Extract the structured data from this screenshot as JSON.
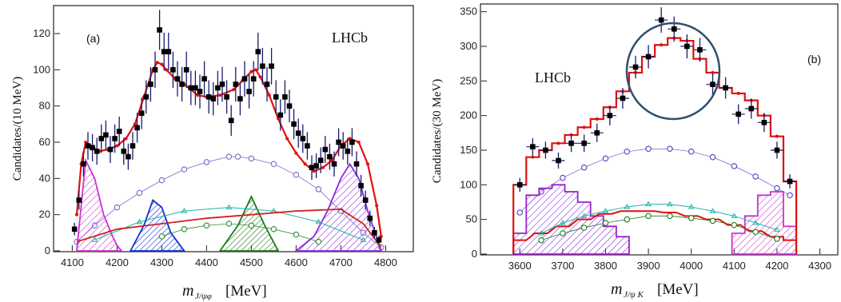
{
  "chart_data": [
    {
      "type": "line",
      "panel_label": "(a)",
      "experiment_label": "LHCb",
      "ylabel": "Candidates/(10 MeV)",
      "xlabel_main": "m",
      "xlabel_sub": "J/ψφ",
      "xlabel_unit": "[MeV]",
      "xlim": [
        4060,
        4860
      ],
      "ylim": [
        0,
        135
      ],
      "xticks": [
        4100,
        4200,
        4300,
        4400,
        4500,
        4600,
        4700,
        4800
      ],
      "yticks": [
        0,
        20,
        40,
        60,
        80,
        100,
        120
      ],
      "data_points": {
        "x": [
          4105,
          4115,
          4125,
          4135,
          4145,
          4155,
          4165,
          4175,
          4185,
          4195,
          4205,
          4215,
          4225,
          4235,
          4245,
          4255,
          4265,
          4275,
          4285,
          4295,
          4305,
          4315,
          4325,
          4335,
          4345,
          4355,
          4365,
          4375,
          4385,
          4395,
          4405,
          4415,
          4425,
          4435,
          4445,
          4455,
          4465,
          4475,
          4485,
          4495,
          4505,
          4515,
          4525,
          4535,
          4545,
          4555,
          4565,
          4575,
          4585,
          4595,
          4605,
          4615,
          4625,
          4635,
          4645,
          4655,
          4665,
          4675,
          4685,
          4695,
          4705,
          4715,
          4725,
          4735,
          4745,
          4755,
          4765,
          4775,
          4785
        ],
        "y": [
          12,
          28,
          48,
          58,
          57,
          55,
          62,
          64,
          56,
          62,
          66,
          55,
          52,
          58,
          68,
          76,
          85,
          92,
          100,
          122,
          110,
          110,
          100,
          95,
          92,
          100,
          90,
          90,
          88,
          95,
          85,
          84,
          90,
          92,
          85,
          72,
          92,
          84,
          95,
          88,
          95,
          110,
          102,
          92,
          102,
          85,
          75,
          85,
          80,
          70,
          65,
          62,
          58,
          46,
          47,
          50,
          56,
          52,
          48,
          60,
          58,
          55,
          60,
          48,
          36,
          28,
          18,
          10,
          6
        ]
      },
      "total_fit": {
        "x": [
          4110,
          4120,
          4130,
          4140,
          4160,
          4180,
          4200,
          4220,
          4240,
          4260,
          4280,
          4290,
          4300,
          4310,
          4330,
          4350,
          4380,
          4400,
          4430,
          4460,
          4480,
          4500,
          4510,
          4520,
          4540,
          4560,
          4580,
          4600,
          4620,
          4640,
          4660,
          4680,
          4700,
          4720,
          4740,
          4760,
          4780,
          4790
        ],
        "y": [
          20,
          48,
          60,
          58,
          55,
          56,
          58,
          62,
          70,
          85,
          100,
          104,
          103,
          100,
          95,
          92,
          86,
          85,
          86,
          89,
          94,
          99,
          100,
          96,
          86,
          73,
          62,
          54,
          48,
          44,
          46,
          50,
          58,
          62,
          60,
          48,
          25,
          8
        ]
      },
      "series": [
        {
          "name": "open-circle-nonresonant",
          "x": [
            4110,
            4150,
            4200,
            4250,
            4300,
            4350,
            4400,
            4450,
            4470,
            4500,
            4550,
            4600,
            4650,
            4700,
            4750,
            4790
          ],
          "y": [
            5,
            14,
            24,
            32,
            39,
            45,
            49,
            52,
            52,
            51,
            48,
            42,
            34,
            22,
            10,
            2
          ]
        },
        {
          "name": "magenta-hatched",
          "x": [
            4110,
            4130,
            4150,
            4170,
            4190,
            4200,
            4210
          ],
          "y": [
            0,
            50,
            40,
            20,
            8,
            3,
            0
          ]
        },
        {
          "name": "violet-hatched",
          "x": [
            4600,
            4640,
            4670,
            4700,
            4720,
            4740,
            4760,
            4790
          ],
          "y": [
            0,
            8,
            22,
            40,
            48,
            40,
            22,
            0
          ]
        },
        {
          "name": "blue-hatched",
          "x": [
            4230,
            4260,
            4280,
            4300,
            4320,
            4350
          ],
          "y": [
            0,
            14,
            28,
            24,
            10,
            0
          ]
        },
        {
          "name": "green-hatched",
          "x": [
            4430,
            4470,
            4500,
            4530,
            4560
          ],
          "y": [
            0,
            14,
            30,
            14,
            0
          ]
        },
        {
          "name": "cyan-triangles",
          "x": [
            4150,
            4250,
            4350,
            4450,
            4550,
            4650,
            4750
          ],
          "y": [
            6,
            16,
            22,
            24,
            22,
            16,
            6
          ]
        },
        {
          "name": "red-smooth",
          "x": [
            4110,
            4200,
            4300,
            4400,
            4500,
            4600,
            4700,
            4750,
            4790
          ],
          "y": [
            5,
            12,
            15,
            18,
            20,
            22,
            23,
            15,
            2
          ]
        },
        {
          "name": "dark-green-circles",
          "x": [
            4300,
            4350,
            4400,
            4450,
            4500,
            4550,
            4600,
            4650
          ],
          "y": [
            8,
            12,
            14,
            15,
            14,
            12,
            9,
            5
          ]
        }
      ]
    },
    {
      "type": "line",
      "panel_label": "(b)",
      "experiment_label": "LHCb",
      "ylabel": "Candidates/(30 MeV)",
      "xlabel_main": "m",
      "xlabel_sub": "J/ψ K",
      "xlabel_unit": "[MeV]",
      "xlim": [
        3510,
        4340
      ],
      "ylim": [
        0,
        360
      ],
      "xticks": [
        3600,
        3700,
        3800,
        3900,
        4000,
        4100,
        4200,
        4300
      ],
      "yticks": [
        0,
        50,
        100,
        150,
        200,
        250,
        300,
        350
      ],
      "data_points": {
        "x": [
          3600,
          3630,
          3660,
          3690,
          3720,
          3750,
          3780,
          3810,
          3840,
          3870,
          3900,
          3930,
          3960,
          3990,
          4020,
          4050,
          4080,
          4110,
          4140,
          4170,
          4200,
          4230
        ],
        "y": [
          100,
          155,
          150,
          135,
          160,
          160,
          175,
          200,
          225,
          270,
          285,
          338,
          325,
          300,
          295,
          245,
          240,
          202,
          210,
          190,
          150,
          105
        ]
      },
      "total_fit": {
        "x": [
          3600,
          3630,
          3660,
          3690,
          3720,
          3750,
          3780,
          3810,
          3840,
          3870,
          3900,
          3930,
          3960,
          3990,
          4020,
          4050,
          4080,
          4110,
          4140,
          4170,
          4200,
          4230
        ],
        "y": [
          100,
          140,
          150,
          160,
          172,
          183,
          195,
          212,
          235,
          262,
          285,
          302,
          312,
          308,
          282,
          262,
          240,
          232,
          222,
          200,
          170,
          105
        ]
      },
      "series": [
        {
          "name": "open-circle-nonresonant",
          "x": [
            3600,
            3650,
            3700,
            3750,
            3800,
            3850,
            3900,
            3950,
            4000,
            4050,
            4100,
            4150,
            4200,
            4230
          ],
          "y": [
            60,
            90,
            110,
            125,
            138,
            148,
            152,
            152,
            148,
            140,
            127,
            112,
            95,
            85
          ]
        },
        {
          "name": "magenta-hatched",
          "x": [
            3600,
            3630,
            3660,
            3690,
            3720,
            3750,
            3780,
            3810,
            3840
          ],
          "y": [
            30,
            85,
            95,
            100,
            90,
            75,
            55,
            40,
            25
          ]
        },
        {
          "name": "magenta-hatched-right",
          "x": [
            4110,
            4140,
            4170,
            4200,
            4230
          ],
          "y": [
            30,
            55,
            85,
            90,
            40
          ]
        },
        {
          "name": "red-hist",
          "x": [
            3600,
            3650,
            3700,
            3750,
            3800,
            3850,
            3900,
            3950,
            4000,
            4050,
            4100,
            4150,
            4200,
            4230
          ],
          "y": [
            20,
            30,
            40,
            50,
            58,
            62,
            62,
            60,
            55,
            50,
            42,
            33,
            25,
            20
          ]
        },
        {
          "name": "cyan-triangles",
          "x": [
            3650,
            3700,
            3750,
            3800,
            3850,
            3900,
            3950,
            4000,
            4050,
            4100,
            4150,
            4200
          ],
          "y": [
            30,
            45,
            55,
            62,
            68,
            72,
            72,
            68,
            62,
            55,
            45,
            35
          ]
        },
        {
          "name": "green-circles",
          "x": [
            3650,
            3700,
            3750,
            3800,
            3850,
            3900,
            3950,
            4000,
            4050,
            4100,
            4150,
            4200
          ],
          "y": [
            20,
            30,
            38,
            45,
            50,
            55,
            55,
            52,
            48,
            42,
            32,
            22
          ]
        }
      ],
      "annotation": "circle around peak near 3950"
    }
  ]
}
